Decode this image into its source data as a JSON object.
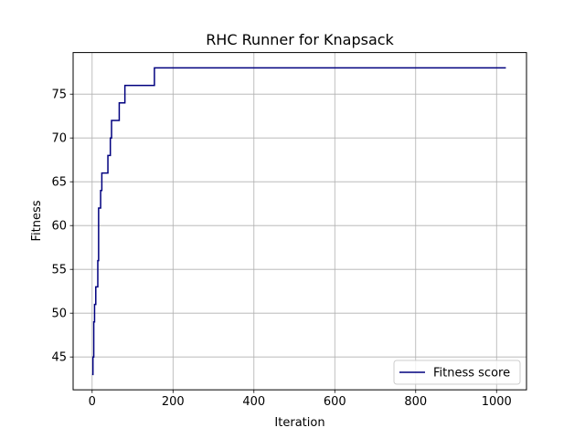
{
  "chart_data": {
    "type": "line",
    "title": "RHC Runner for Knapsack",
    "xlabel": "Iteration",
    "ylabel": "Fitness",
    "xlim": [
      -47,
      1074
    ],
    "ylim": [
      41.25,
      79.75
    ],
    "xticks": [
      0,
      200,
      400,
      600,
      800,
      1000
    ],
    "yticks": [
      45,
      50,
      55,
      60,
      65,
      70,
      75
    ],
    "grid": true,
    "legend_position": "lower-right",
    "step": true,
    "series": [
      {
        "name": "Fitness score",
        "color": "#00007f",
        "x": [
          0,
          2,
          4,
          6,
          9,
          14,
          16,
          21,
          24,
          31,
          39,
          45,
          48,
          53,
          67,
          73,
          81,
          154,
          1023
        ],
        "y": [
          43,
          45,
          49,
          51,
          53,
          56,
          62,
          64,
          66,
          66,
          68,
          70,
          72,
          72,
          74,
          74,
          76,
          78,
          78
        ]
      }
    ]
  }
}
